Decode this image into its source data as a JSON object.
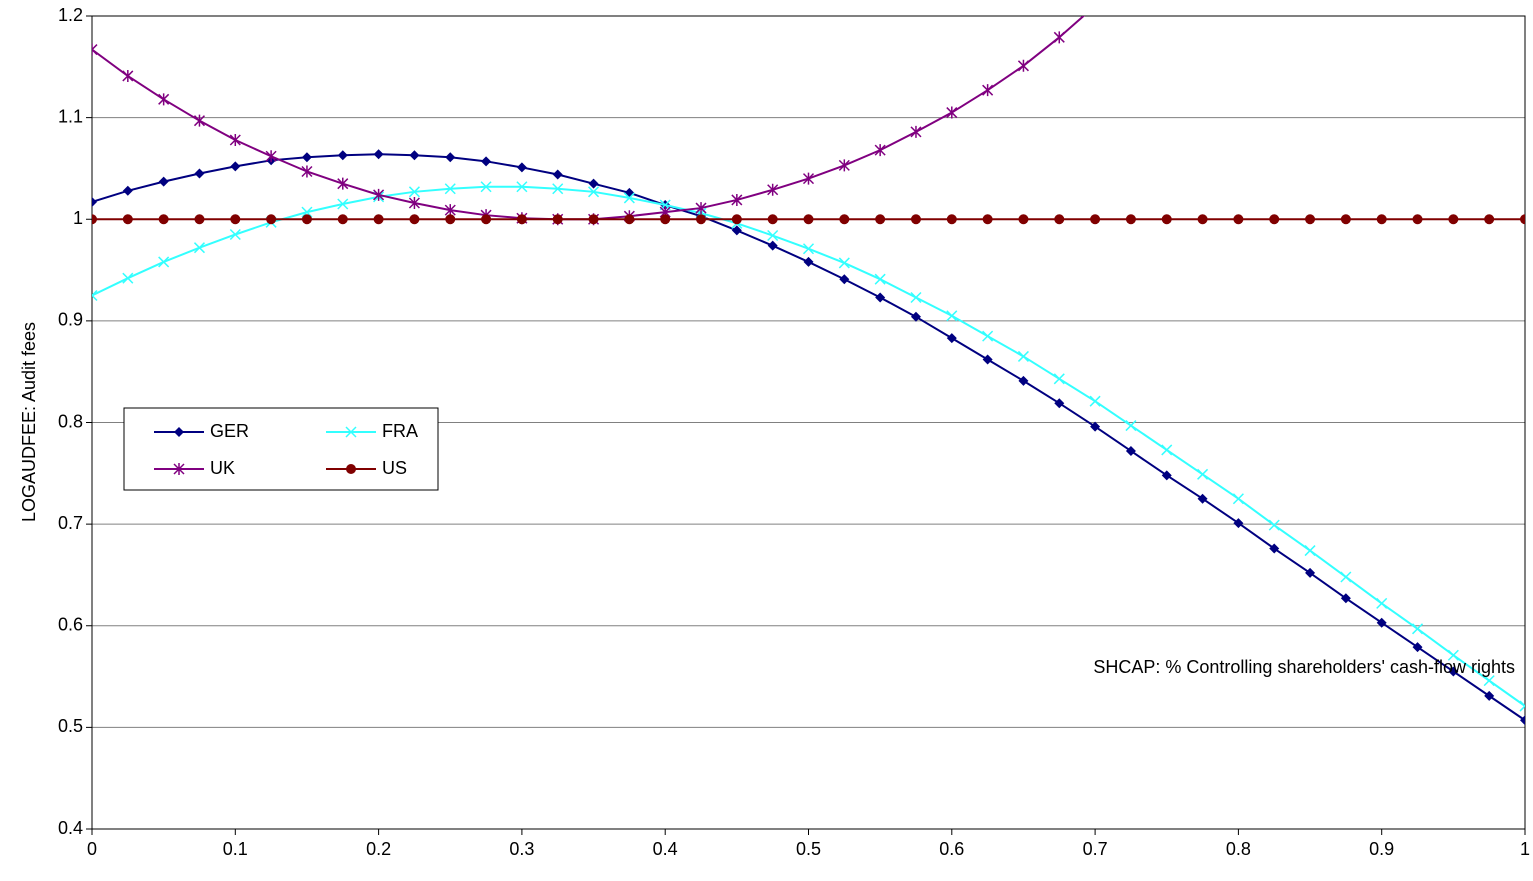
{
  "chart_data": {
    "type": "line",
    "y_label": "LOGAUDFEE: Audit fees",
    "annotation": "SHCAP: % Controlling shareholders' cash-flow rights",
    "x": [
      0,
      0.025,
      0.05,
      0.075,
      0.1,
      0.125,
      0.15,
      0.175,
      0.2,
      0.225,
      0.25,
      0.275,
      0.3,
      0.325,
      0.35,
      0.375,
      0.4,
      0.425,
      0.45,
      0.475,
      0.5,
      0.525,
      0.55,
      0.575,
      0.6,
      0.625,
      0.65,
      0.675,
      0.7,
      0.725,
      0.75,
      0.775,
      0.8,
      0.825,
      0.85,
      0.875,
      0.9,
      0.925,
      0.95,
      0.975,
      1
    ],
    "series": [
      {
        "name": "GER",
        "color": "#000080",
        "marker": "diamond",
        "values": [
          1.017,
          1.028,
          1.037,
          1.045,
          1.052,
          1.058,
          1.061,
          1.063,
          1.064,
          1.063,
          1.061,
          1.057,
          1.051,
          1.044,
          1.035,
          1.026,
          1.014,
          1.003,
          0.989,
          0.974,
          0.958,
          0.941,
          0.923,
          0.904,
          0.883,
          0.862,
          0.841,
          0.819,
          0.796,
          0.772,
          0.748,
          0.725,
          0.701,
          0.676,
          0.652,
          0.627,
          0.603,
          0.579,
          0.555,
          0.531,
          0.507
        ]
      },
      {
        "name": "FRA",
        "color": "#33ffff",
        "marker": "x",
        "values": [
          0.925,
          0.942,
          0.958,
          0.972,
          0.985,
          0.997,
          1.007,
          1.015,
          1.022,
          1.027,
          1.03,
          1.032,
          1.032,
          1.03,
          1.027,
          1.021,
          1.014,
          1.006,
          0.996,
          0.984,
          0.971,
          0.957,
          0.941,
          0.923,
          0.905,
          0.885,
          0.865,
          0.843,
          0.821,
          0.797,
          0.773,
          0.749,
          0.725,
          0.699,
          0.674,
          0.648,
          0.622,
          0.597,
          0.571,
          0.546,
          0.521
        ]
      },
      {
        "name": "UK",
        "color": "#800080",
        "marker": "asterisk",
        "values": [
          1.167,
          1.141,
          1.118,
          1.097,
          1.078,
          1.062,
          1.047,
          1.035,
          1.024,
          1.016,
          1.009,
          1.004,
          1.001,
          1.0,
          1.0,
          1.003,
          1.007,
          1.011,
          1.019,
          1.029,
          1.04,
          1.053,
          1.068,
          1.086,
          1.105,
          1.127,
          1.151,
          1.179,
          1.21,
          null,
          null,
          null,
          null,
          null,
          null,
          null,
          null,
          null,
          null,
          null,
          null
        ]
      },
      {
        "name": "US",
        "color": "#800000",
        "marker": "circle",
        "values": [
          1,
          1,
          1,
          1,
          1,
          1,
          1,
          1,
          1,
          1,
          1,
          1,
          1,
          1,
          1,
          1,
          1,
          1,
          1,
          1,
          1,
          1,
          1,
          1,
          1,
          1,
          1,
          1,
          1,
          1,
          1,
          1,
          1,
          1,
          1,
          1,
          1,
          1,
          1,
          1,
          1
        ]
      }
    ],
    "xlim": [
      0,
      1
    ],
    "xticks": [
      0,
      0.1,
      0.2,
      0.3,
      0.4,
      0.5,
      0.6,
      0.7,
      0.8,
      0.9,
      1
    ],
    "ylim": [
      0.4,
      1.2
    ],
    "yticks": [
      0.4,
      0.5,
      0.6,
      0.7,
      0.8,
      0.9,
      1,
      1.1,
      1.2
    ],
    "grid": true,
    "legend": "center-left"
  }
}
